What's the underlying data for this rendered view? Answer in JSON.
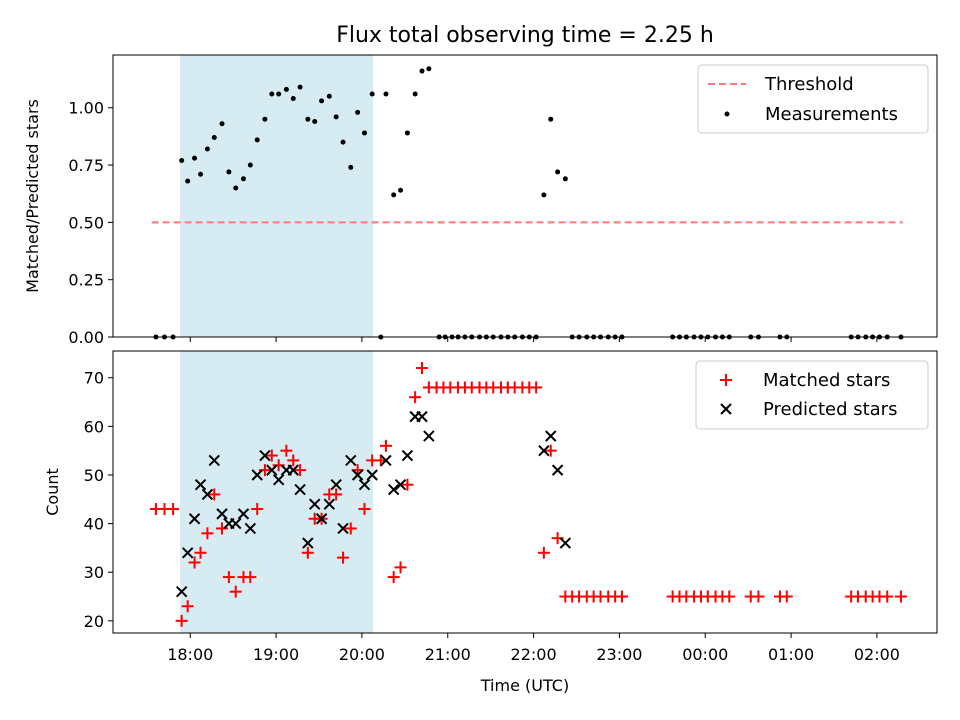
{
  "chart_data": [
    {
      "type": "scatter",
      "title": "Flux total observing time = 2.25 h",
      "xlabel": "",
      "ylabel": "Matched/Predicted stars",
      "xlim_hours": [
        17.1,
        26.7
      ],
      "ylim": [
        0.0,
        1.23
      ],
      "yticks": [
        "0.00",
        "0.25",
        "0.50",
        "0.75",
        "1.00"
      ],
      "highlight_span_hours": [
        17.88,
        20.13
      ],
      "highlight_color": "#add8e6",
      "legend_position": "top-right",
      "threshold": {
        "name": "Threshold",
        "value": 0.5,
        "x_range_hours": [
          17.55,
          26.3
        ],
        "color": "#ff6666",
        "style": "dashed"
      },
      "series": [
        {
          "name": "Measurements",
          "color": "#000000",
          "marker": "dot",
          "x_hours": [
            17.6,
            17.7,
            17.8,
            17.9,
            17.97,
            18.05,
            18.12,
            18.2,
            18.28,
            18.37,
            18.45,
            18.53,
            18.62,
            18.7,
            18.78,
            18.87,
            18.95,
            19.03,
            19.12,
            19.2,
            19.28,
            19.37,
            19.45,
            19.53,
            19.62,
            19.7,
            19.78,
            19.87,
            19.95,
            20.03,
            20.12,
            20.22,
            20.28,
            20.37,
            20.45,
            20.53,
            20.62,
            20.7,
            20.78,
            20.9,
            20.97,
            21.05,
            21.12,
            21.2,
            21.28,
            21.37,
            21.45,
            21.53,
            21.62,
            21.7,
            21.78,
            21.87,
            21.95,
            22.03,
            22.12,
            22.2,
            22.28,
            22.37,
            22.45,
            22.53,
            22.62,
            22.7,
            22.78,
            22.87,
            22.95,
            23.03,
            23.62,
            23.7,
            23.78,
            23.87,
            23.95,
            24.03,
            24.12,
            24.2,
            24.28,
            24.53,
            24.62,
            24.87,
            24.95,
            25.7,
            25.78,
            25.87,
            25.95,
            26.03,
            26.12,
            26.28
          ],
          "y": [
            0,
            0,
            0,
            0.77,
            0.68,
            0.78,
            0.71,
            0.82,
            0.87,
            0.93,
            0.72,
            0.65,
            0.69,
            0.75,
            0.86,
            0.95,
            1.06,
            1.06,
            1.08,
            1.04,
            1.09,
            0.95,
            0.94,
            1.03,
            1.05,
            0.96,
            0.85,
            0.74,
            0.98,
            0.89,
            1.06,
            0,
            1.06,
            0.62,
            0.64,
            0.89,
            1.06,
            1.16,
            1.17,
            0,
            0,
            0,
            0,
            0,
            0,
            0,
            0,
            0,
            0,
            0,
            0,
            0,
            0,
            0,
            0.62,
            0.95,
            0.72,
            0.69,
            0,
            0,
            0,
            0,
            0,
            0,
            0,
            0,
            0,
            0,
            0,
            0,
            0,
            0,
            0,
            0,
            0,
            0,
            0,
            0,
            0,
            0,
            0,
            0,
            0,
            0,
            0,
            0
          ]
        }
      ]
    },
    {
      "type": "scatter",
      "title": "",
      "xlabel": "Time (UTC)",
      "ylabel": "Count",
      "xlim_hours": [
        17.1,
        26.7
      ],
      "ylim": [
        17.5,
        75.5
      ],
      "yticks": [
        "20",
        "30",
        "40",
        "50",
        "60",
        "70"
      ],
      "xtick_hours": [
        18,
        19,
        20,
        21,
        22,
        23,
        24,
        25,
        26
      ],
      "xticks": [
        "18:00",
        "19:00",
        "20:00",
        "21:00",
        "22:00",
        "23:00",
        "00:00",
        "01:00",
        "02:00"
      ],
      "highlight_span_hours": [
        17.88,
        20.13
      ],
      "highlight_color": "#add8e6",
      "legend_position": "top-right",
      "series": [
        {
          "name": "Matched stars",
          "color": "#ff0000",
          "marker": "plus",
          "x_hours": [
            17.6,
            17.7,
            17.8,
            17.9,
            17.97,
            18.05,
            18.12,
            18.2,
            18.28,
            18.37,
            18.45,
            18.53,
            18.62,
            18.7,
            18.78,
            18.87,
            18.95,
            19.03,
            19.12,
            19.2,
            19.28,
            19.37,
            19.45,
            19.53,
            19.62,
            19.7,
            19.78,
            19.87,
            19.95,
            20.03,
            20.12,
            20.22,
            20.28,
            20.37,
            20.45,
            20.53,
            20.62,
            20.7,
            20.78,
            20.87,
            20.95,
            21.03,
            21.12,
            21.2,
            21.28,
            21.37,
            21.45,
            21.53,
            21.62,
            21.7,
            21.78,
            21.87,
            21.95,
            22.03,
            22.12,
            22.2,
            22.28,
            22.37,
            22.45,
            22.53,
            22.62,
            22.7,
            22.78,
            22.87,
            22.95,
            23.03,
            23.62,
            23.7,
            23.78,
            23.87,
            23.95,
            24.03,
            24.12,
            24.2,
            24.28,
            24.53,
            24.62,
            24.87,
            24.95,
            25.7,
            25.78,
            25.87,
            25.95,
            26.03,
            26.12,
            26.28
          ],
          "y": [
            43,
            43,
            43,
            20,
            23,
            32,
            34,
            38,
            46,
            39,
            29,
            26,
            29,
            29,
            43,
            51,
            54,
            52,
            55,
            53,
            51,
            34,
            41,
            41,
            46,
            46,
            33,
            39,
            51,
            43,
            53,
            53,
            56,
            29,
            31,
            48,
            66,
            72,
            68,
            68,
            68,
            68,
            68,
            68,
            68,
            68,
            68,
            68,
            68,
            68,
            68,
            68,
            68,
            68,
            34,
            55,
            37,
            25,
            25,
            25,
            25,
            25,
            25,
            25,
            25,
            25,
            25,
            25,
            25,
            25,
            25,
            25,
            25,
            25,
            25,
            25,
            25,
            25,
            25,
            25,
            25,
            25,
            25,
            25,
            25,
            25
          ]
        },
        {
          "name": "Predicted stars",
          "color": "#000000",
          "marker": "x",
          "x_hours": [
            17.9,
            17.97,
            18.05,
            18.12,
            18.2,
            18.28,
            18.37,
            18.45,
            18.53,
            18.62,
            18.7,
            18.78,
            18.87,
            18.95,
            19.03,
            19.12,
            19.2,
            19.28,
            19.37,
            19.45,
            19.53,
            19.62,
            19.7,
            19.78,
            19.87,
            19.95,
            20.03,
            20.12,
            20.28,
            20.37,
            20.45,
            20.53,
            20.62,
            20.7,
            20.78,
            22.12,
            22.2,
            22.28,
            22.37
          ],
          "y": [
            26,
            34,
            41,
            48,
            46,
            53,
            42,
            40,
            40,
            42,
            39,
            50,
            54,
            51,
            49,
            51,
            51,
            47,
            36,
            44,
            41,
            44,
            48,
            39,
            53,
            50,
            48,
            50,
            53,
            47,
            48,
            54,
            62,
            62,
            58,
            55,
            58,
            51,
            36
          ]
        }
      ]
    }
  ]
}
